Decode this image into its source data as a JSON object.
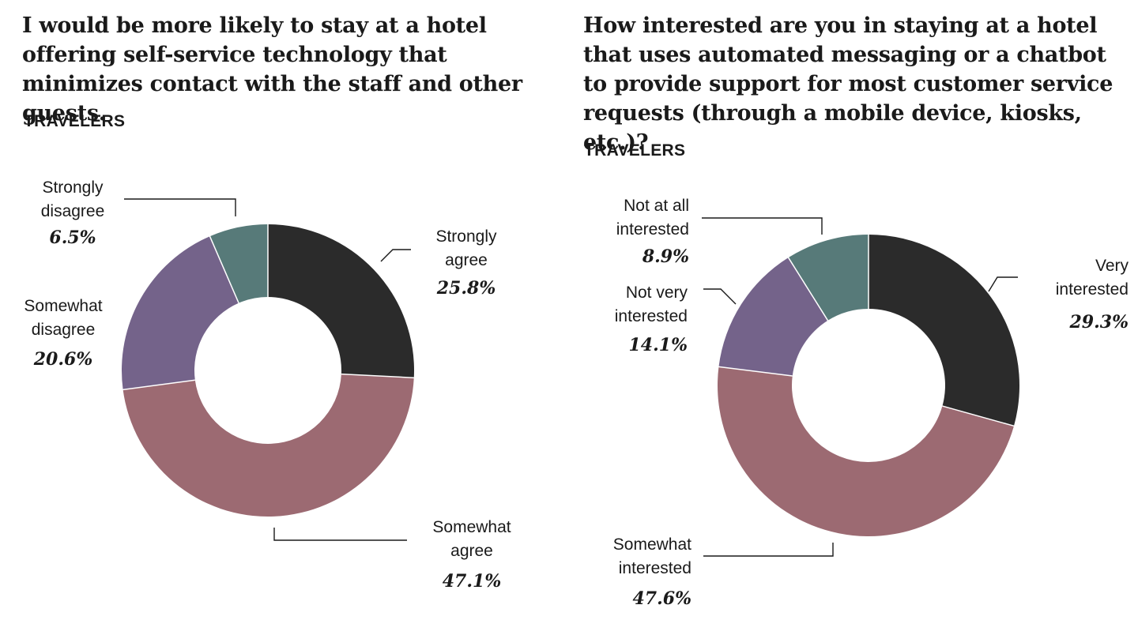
{
  "chart_data": [
    {
      "type": "pie",
      "title": "I would be more likely to stay at a hotel offering self-service technology that minimizes contact with the staff and other guests.",
      "subtitle": "TRAVELERS",
      "slices": [
        {
          "label_lines": [
            "Strongly",
            "agree"
          ],
          "value": 25.8,
          "value_label": "25.8%",
          "color": "#2b2b2b"
        },
        {
          "label_lines": [
            "Somewhat",
            "agree"
          ],
          "value": 47.1,
          "value_label": "47.1%",
          "color": "#9c6a72"
        },
        {
          "label_lines": [
            "Somewhat",
            "disagree"
          ],
          "value": 20.6,
          "value_label": "20.6%",
          "color": "#74638a"
        },
        {
          "label_lines": [
            "Strongly",
            "disagree"
          ],
          "value": 6.5,
          "value_label": "6.5%",
          "color": "#577a79"
        }
      ]
    },
    {
      "type": "pie",
      "title": "How interested are you in staying at a hotel that uses automated messaging or a chatbot to provide support for most customer service requests (through a mobile device, kiosks, etc.)?",
      "subtitle": "TRAVELERS",
      "slices": [
        {
          "label_lines": [
            "Very",
            "interested"
          ],
          "value": 29.3,
          "value_label": "29.3%",
          "color": "#2b2b2b"
        },
        {
          "label_lines": [
            "Somewhat",
            "interested"
          ],
          "value": 47.6,
          "value_label": "47.6%",
          "color": "#9c6a72"
        },
        {
          "label_lines": [
            "Not very",
            "interested"
          ],
          "value": 14.1,
          "value_label": "14.1%",
          "color": "#74638a"
        },
        {
          "label_lines": [
            "Not at all",
            "interested"
          ],
          "value": 8.9,
          "value_label": "8.9%",
          "color": "#577a79"
        }
      ]
    }
  ]
}
